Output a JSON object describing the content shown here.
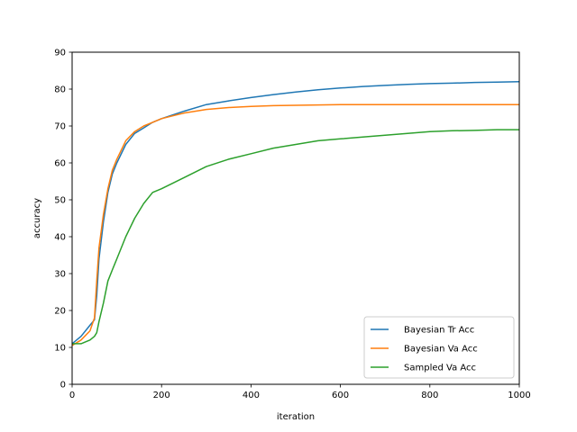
{
  "chart_data": {
    "type": "line",
    "title": "",
    "xlabel": "iteration",
    "ylabel": "accuracy",
    "xlim": [
      0,
      1000
    ],
    "ylim": [
      0,
      90
    ],
    "xticks": [
      "0",
      "200",
      "400",
      "600",
      "800",
      "1000"
    ],
    "yticks": [
      "0",
      "10",
      "20",
      "30",
      "40",
      "50",
      "60",
      "70",
      "80",
      "90"
    ],
    "grid": false,
    "legend_position": "lower-right",
    "x": [
      0,
      20,
      40,
      50,
      55,
      60,
      70,
      80,
      90,
      100,
      120,
      140,
      160,
      180,
      200,
      250,
      300,
      350,
      400,
      450,
      500,
      550,
      600,
      650,
      700,
      750,
      800,
      850,
      900,
      950,
      1000
    ],
    "series": [
      {
        "name": "Bayesian Tr Acc",
        "color": "#1f77b4",
        "values": [
          11,
          13,
          16,
          17.5,
          24,
          34,
          44,
          52,
          57,
          60,
          65,
          68,
          69.5,
          71,
          72,
          74,
          75.8,
          76.8,
          77.7,
          78.5,
          79.2,
          79.8,
          80.3,
          80.7,
          81,
          81.3,
          81.5,
          81.6,
          81.8,
          81.9,
          82
        ]
      },
      {
        "name": "Bayesian Va Acc",
        "color": "#ff7f0e",
        "values": [
          10.5,
          12,
          14.5,
          18,
          28,
          37,
          46,
          53,
          58,
          61,
          66,
          68.5,
          70,
          71,
          72,
          73.5,
          74.5,
          75,
          75.3,
          75.5,
          75.6,
          75.7,
          75.8,
          75.8,
          75.8,
          75.8,
          75.8,
          75.8,
          75.8,
          75.8,
          75.8
        ]
      },
      {
        "name": "Sampled Va Acc",
        "color": "#2ca02c",
        "values": [
          11,
          11,
          12,
          13,
          14,
          17,
          22,
          28,
          31,
          34,
          40,
          45,
          49,
          52,
          53,
          56,
          59,
          61,
          62.5,
          64,
          65,
          66,
          66.5,
          67,
          67.5,
          68,
          68.5,
          68.7,
          68.8,
          69,
          69
        ]
      }
    ]
  }
}
